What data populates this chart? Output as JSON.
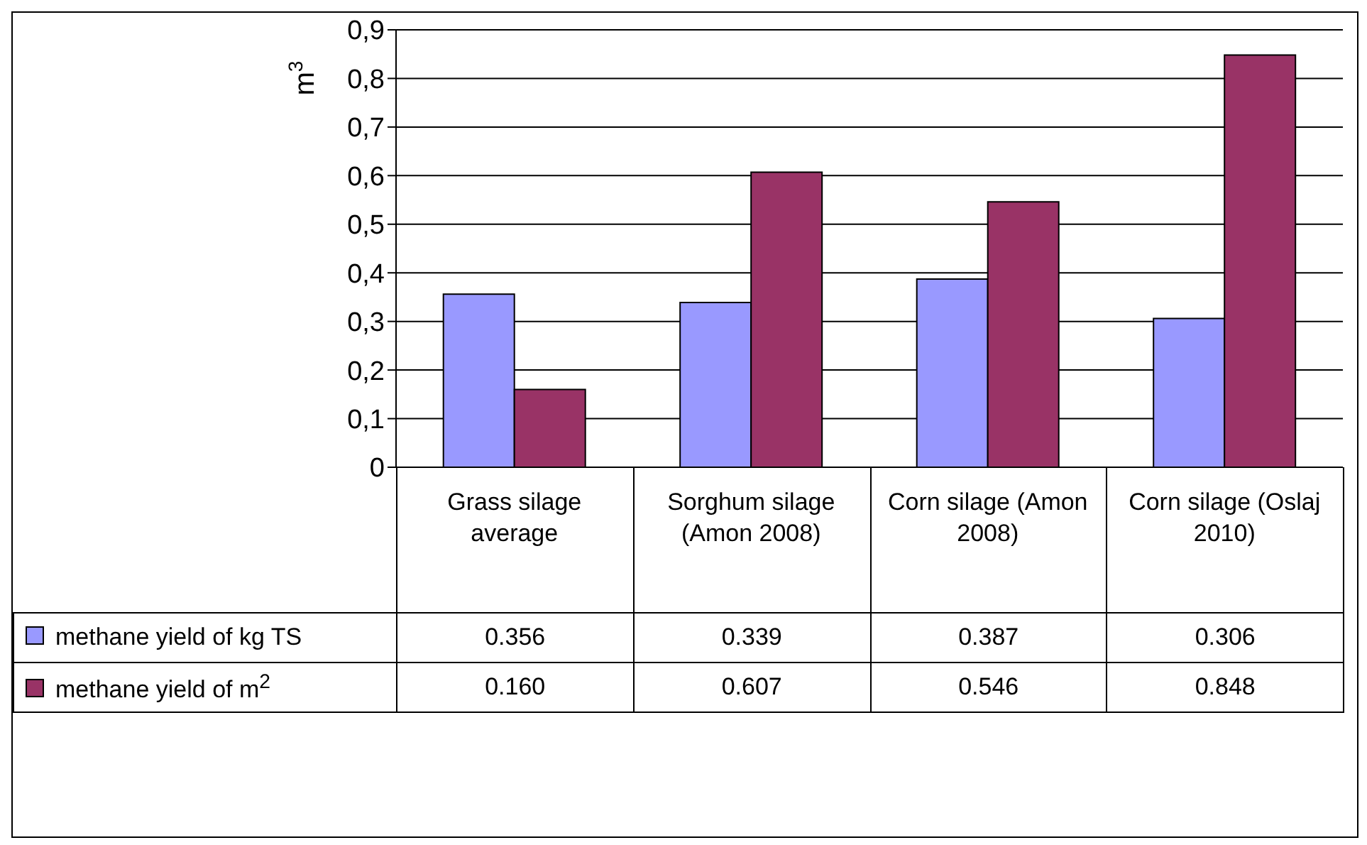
{
  "chart_data": {
    "type": "bar",
    "ylabel": "m$^{3}$",
    "categories": [
      "Grass silage average",
      "Sorghum silage (Amon 2008)",
      "Corn silage (Amon 2008)",
      "Corn silage (Oslaj 2010)"
    ],
    "series": [
      {
        "name": "methane yield of kg TS",
        "color": "#9999ff",
        "values": [
          0.356,
          0.339,
          0.387,
          0.306
        ],
        "value_labels": [
          "0.356",
          "0.339",
          "0.387",
          "0.306"
        ]
      },
      {
        "name": "methane yield of m$^{2}$",
        "color": "#993366",
        "values": [
          0.16,
          0.607,
          0.546,
          0.848
        ],
        "value_labels": [
          "0.160",
          "0.607",
          "0.546",
          "0.848"
        ]
      }
    ],
    "ylim": [
      0,
      0.9
    ],
    "yticks": [
      {
        "value": 0,
        "label": "0"
      },
      {
        "value": 0.1,
        "label": "0,1"
      },
      {
        "value": 0.2,
        "label": "0,2"
      },
      {
        "value": 0.3,
        "label": "0,3"
      },
      {
        "value": 0.4,
        "label": "0,4"
      },
      {
        "value": 0.5,
        "label": "0,5"
      },
      {
        "value": 0.6,
        "label": "0,6"
      },
      {
        "value": 0.7,
        "label": "0,7"
      },
      {
        "value": 0.8,
        "label": "0,8"
      },
      {
        "value": 0.9,
        "label": "0,9"
      }
    ],
    "grid": "y",
    "legend": "bottom left"
  }
}
